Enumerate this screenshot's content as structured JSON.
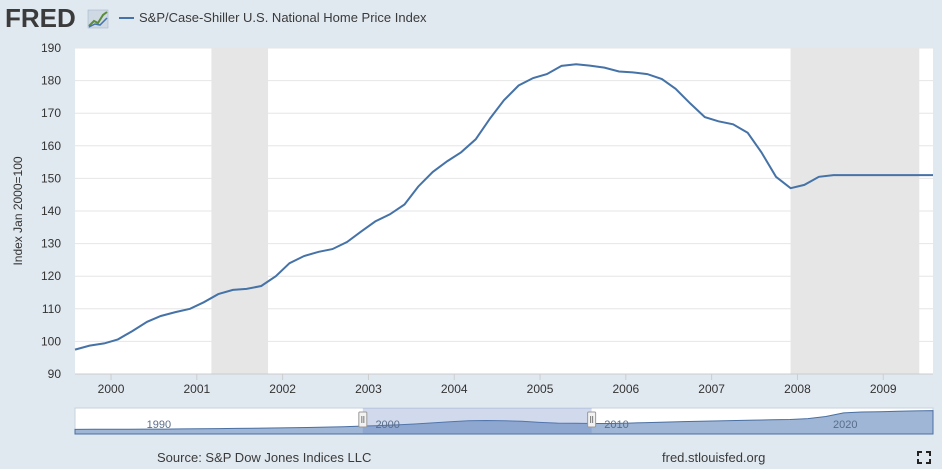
{
  "logo": {
    "text": "FRED"
  },
  "chart_data": {
    "type": "line",
    "title": "",
    "legend": [
      "S&P/Case-Shiller U.S. National Home Price Index"
    ],
    "ylabel": "Index Jan 2000=100",
    "xlabel": "",
    "xlim": [
      1999.58,
      2009.58
    ],
    "ylim": [
      90,
      190
    ],
    "yticks": [
      90,
      100,
      110,
      120,
      130,
      140,
      150,
      160,
      170,
      180,
      190
    ],
    "xticks": [
      "2000",
      "2001",
      "2002",
      "2003",
      "2004",
      "2005",
      "2006",
      "2007",
      "2008",
      "2009"
    ],
    "xtick_values": [
      2000,
      2001,
      2002,
      2003,
      2004,
      2005,
      2006,
      2007,
      2008,
      2009
    ],
    "grid": true,
    "recessions": [
      [
        2001.17,
        2001.83
      ],
      [
        2007.92,
        2009.42
      ]
    ],
    "series": [
      {
        "name": "S&P/Case-Shiller U.S. National Home Price Index",
        "color": "#4572a7",
        "x": [
          1999.58,
          1999.75,
          1999.92,
          2000.08,
          2000.25,
          2000.42,
          2000.58,
          2000.75,
          2000.92,
          2001.08,
          2001.25,
          2001.42,
          2001.58,
          2001.75,
          2001.92,
          2002.08,
          2002.25,
          2002.42,
          2002.58,
          2002.75,
          2002.92,
          2003.08,
          2003.25,
          2003.42,
          2003.58,
          2003.75,
          2003.92,
          2004.08,
          2004.25,
          2004.42,
          2004.58,
          2004.75,
          2004.92,
          2005.08,
          2005.25,
          2005.42,
          2005.58,
          2005.75,
          2005.92,
          2006.08,
          2006.25,
          2006.42,
          2006.58,
          2006.75,
          2006.92,
          2007.08,
          2007.25,
          2007.42,
          2007.58,
          2007.75,
          2007.92,
          2008.08,
          2008.25,
          2008.42,
          2008.58,
          2008.75,
          2008.92,
          2009.08,
          2009.25,
          2009.42,
          2009.58
        ],
        "values": [
          97.5,
          98.7,
          99.4,
          100.6,
          103.2,
          106.0,
          107.8,
          109.0,
          110.0,
          112.0,
          114.5,
          115.8,
          116.1,
          117.0,
          120.0,
          124.0,
          126.2,
          127.5,
          128.3,
          130.5,
          133.8,
          136.8,
          139.0,
          142.0,
          147.5,
          152.0,
          155.3,
          158.0,
          162.0,
          168.5,
          174.0,
          178.5,
          180.8,
          182.0,
          184.5,
          185.0,
          184.6,
          184.0,
          182.8,
          182.5,
          182.0,
          180.5,
          177.5,
          173.0,
          168.8,
          167.5,
          166.6,
          164.0,
          158.0,
          150.5,
          147.0,
          148.0,
          150.5,
          151.0,
          151.0,
          151.0,
          151.0,
          151.0,
          151.0,
          151.0,
          151.0
        ]
      }
    ],
    "navigator": {
      "labels": [
        "1990",
        "2000",
        "2010",
        "2020"
      ],
      "label_years": [
        1990,
        2000,
        2010,
        2020
      ],
      "range_years": [
        1987,
        2024.5
      ],
      "selected_years": [
        1999.58,
        2009.58
      ],
      "values": [
        63,
        64,
        65,
        66,
        67,
        68,
        70,
        72,
        74,
        77,
        80,
        83,
        86,
        90,
        95,
        100,
        108,
        116,
        125,
        137,
        152,
        168,
        181,
        185,
        183,
        175,
        160,
        150,
        147,
        145,
        145,
        150,
        157,
        164,
        170,
        176,
        180,
        186,
        191,
        195,
        200,
        212,
        240,
        290,
        302,
        306,
        312,
        318,
        322
      ]
    }
  },
  "footer": {
    "source": "Source: S&P Dow Jones Indices LLC",
    "site": "fred.stlouisfed.org"
  },
  "controls": {
    "fullscreen_icon": "fullscreen-icon"
  }
}
